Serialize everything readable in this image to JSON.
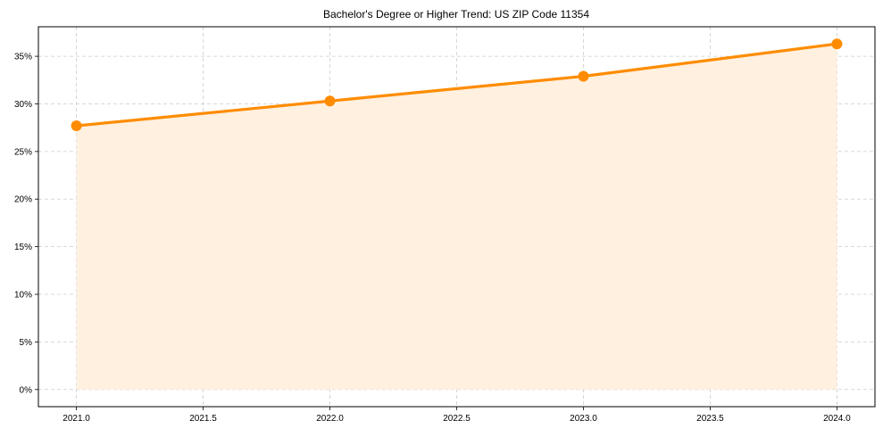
{
  "chart_data": {
    "type": "line",
    "title": "Bachelor's Degree or Higher Trend: US ZIP Code 11354",
    "xlabel": "",
    "ylabel": "",
    "x": [
      2021,
      2022,
      2023,
      2024
    ],
    "series": [
      {
        "name": "Bachelor's Degree or Higher",
        "values": [
          27.7,
          30.3,
          32.9,
          36.3
        ],
        "color": "#ff8c00",
        "fill": "#fff0e0"
      }
    ],
    "xlim": [
      2020.85,
      2024.15
    ],
    "ylim": [
      -1.8,
      38.1
    ],
    "x_ticks": [
      "2021.0",
      "2021.5",
      "2022.0",
      "2022.5",
      "2023.0",
      "2023.5",
      "2024.0"
    ],
    "x_tick_values": [
      2021.0,
      2021.5,
      2022.0,
      2022.5,
      2023.0,
      2023.5,
      2024.0
    ],
    "y_ticks": [
      "0%",
      "5%",
      "10%",
      "15%",
      "20%",
      "25%",
      "30%",
      "35%"
    ],
    "y_tick_values": [
      0,
      5,
      10,
      15,
      20,
      25,
      30,
      35
    ],
    "grid": true,
    "legend": "none",
    "area_fill": true
  }
}
